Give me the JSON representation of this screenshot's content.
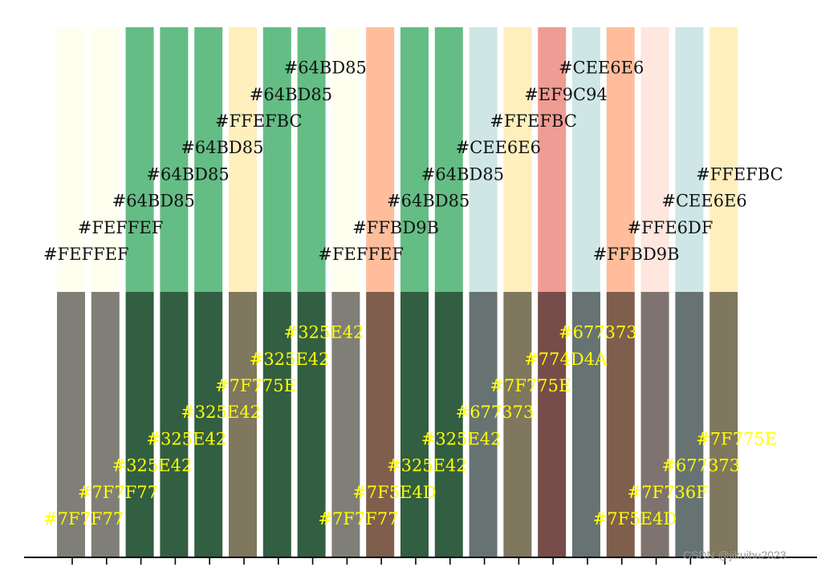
{
  "chart_data": {
    "type": "bar",
    "bar_count": 20,
    "top_band": {
      "colors": [
        "#FEFFEF",
        "#FEFFEF",
        "#64BD85",
        "#64BD85",
        "#64BD85",
        "#FFEFBC",
        "#64BD85",
        "#64BD85",
        "#FEFFEF",
        "#FFBD9B",
        "#64BD85",
        "#64BD85",
        "#CEE6E6",
        "#FFEFBC",
        "#EF9C94",
        "#CEE6E6",
        "#FFBD9B",
        "#FFE6DF",
        "#CEE6E6",
        "#FFEFBC"
      ],
      "labels": [
        "#FEFFEF",
        "#FEFFEF",
        "#64BD85",
        "#64BD85",
        "#64BD85",
        "#FFEFBC",
        "#64BD85",
        "#64BD85",
        "#FEFFEF",
        "#FFBD9B",
        "#64BD85",
        "#64BD85",
        "#CEE6E6",
        "#FFEFBC",
        "#EF9C94",
        "#CEE6E6",
        "#FFBD9B",
        "#FFE6DF",
        "#CEE6E6",
        "#FFEFBC"
      ],
      "label_color": "#111111"
    },
    "bottom_band": {
      "colors": [
        "#7F7F77",
        "#7F7F77",
        "#325E42",
        "#325E42",
        "#325E42",
        "#7F775E",
        "#325E42",
        "#325E42",
        "#7F7F77",
        "#7F5E4D",
        "#325E42",
        "#325E42",
        "#677373",
        "#7F775E",
        "#774D4A",
        "#677373",
        "#7F5E4D",
        "#7F736F",
        "#677373",
        "#7F775E"
      ],
      "labels": [
        "#7F7F77",
        "#7F7F77",
        "#325E42",
        "#325E42",
        "#325E42",
        "#7F775E",
        "#325E42",
        "#325E42",
        "#7F7F77",
        "#7F5E4D",
        "#325E42",
        "#325E42",
        "#677373",
        "#7F775E",
        "#774D4A",
        "#677373",
        "#7F5E4D",
        "#7F736F",
        "#677373",
        "#7F775E"
      ],
      "label_color": "#FFFF00"
    },
    "label_level": [
      0,
      1,
      2,
      3,
      4,
      5,
      6,
      7,
      0,
      1,
      2,
      3,
      4,
      5,
      6,
      7,
      0,
      1,
      2,
      3
    ],
    "xaxis_ticks": 20,
    "grid": false
  },
  "watermark": "CSDN @jikuibu2023"
}
